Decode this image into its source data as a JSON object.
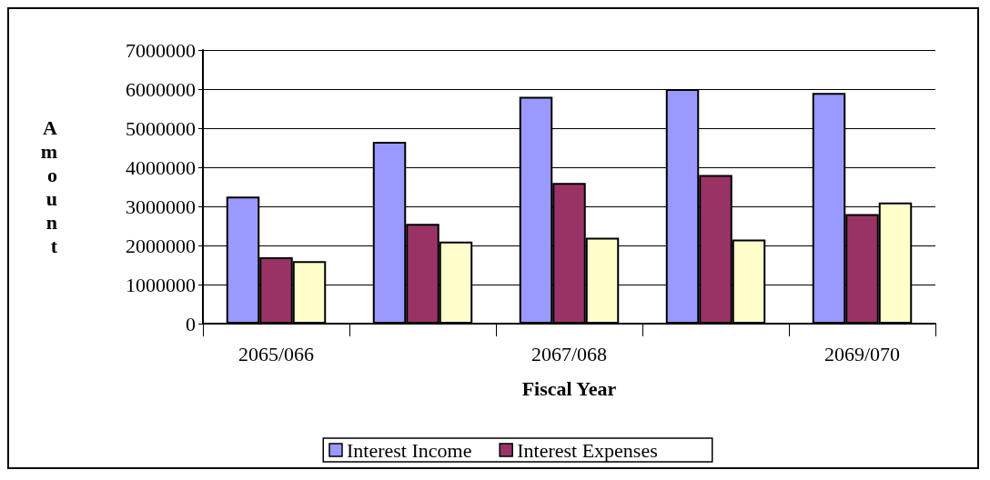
{
  "chart_data": {
    "type": "bar",
    "xlabel": "Fiscal Year",
    "ylabel": "Amount",
    "categories": [
      "2065/066",
      null,
      "2067/068",
      null,
      "2069/070"
    ],
    "series": [
      {
        "name": "Interest Income",
        "color": "#9999ff",
        "values": [
          3250000,
          4650000,
          5800000,
          6000000,
          5900000
        ]
      },
      {
        "name": "Interest Expenses",
        "color": "#993366",
        "values": [
          1700000,
          2550000,
          3600000,
          3800000,
          2800000
        ]
      },
      {
        "color": "#ffffcc",
        "values": [
          1600000,
          2100000,
          2200000,
          2150000,
          3100000
        ]
      }
    ],
    "ylim": [
      0,
      7000000
    ],
    "yticks": [
      0,
      1000000,
      2000000,
      3000000,
      4000000,
      5000000,
      6000000,
      7000000
    ],
    "grid": "y",
    "legend": "bottom"
  }
}
